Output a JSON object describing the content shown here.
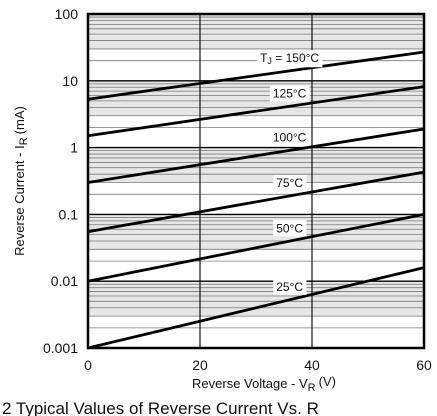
{
  "chart_data": {
    "type": "line",
    "xlabel": "Reverse Voltage - V",
    "xlabel_sub": "R",
    "xlabel_unit": "(V)",
    "ylabel": "Reverse Current - I",
    "ylabel_sub": "R",
    "ylabel_unit": "(mA)",
    "xlim": [
      0,
      60
    ],
    "ylim": [
      0.001,
      100
    ],
    "y_scale": "log",
    "x_ticks": [
      "0",
      "20",
      "40",
      "60"
    ],
    "y_ticks": [
      "0.001",
      "0.01",
      "0.1",
      "1",
      "10",
      "100"
    ],
    "grid": true,
    "series": [
      {
        "name": "T",
        "name_sub": "J",
        "name_suffix": " = 150°C",
        "x": [
          0,
          60
        ],
        "y": [
          5.3,
          27
        ]
      },
      {
        "name": "125°C",
        "x": [
          0,
          60
        ],
        "y": [
          1.5,
          8.2
        ]
      },
      {
        "name": "100°C",
        "x": [
          0,
          60
        ],
        "y": [
          0.3,
          1.9
        ]
      },
      {
        "name": "75°C",
        "x": [
          0,
          60
        ],
        "y": [
          0.055,
          0.43
        ]
      },
      {
        "name": "50°C",
        "x": [
          0,
          60
        ],
        "y": [
          0.01,
          0.1
        ]
      },
      {
        "name": "25°C",
        "x": [
          0,
          60
        ],
        "y": [
          0.001,
          0.016
        ]
      }
    ],
    "caption": "2 Typical Values of Reverse Current Vs. R"
  }
}
